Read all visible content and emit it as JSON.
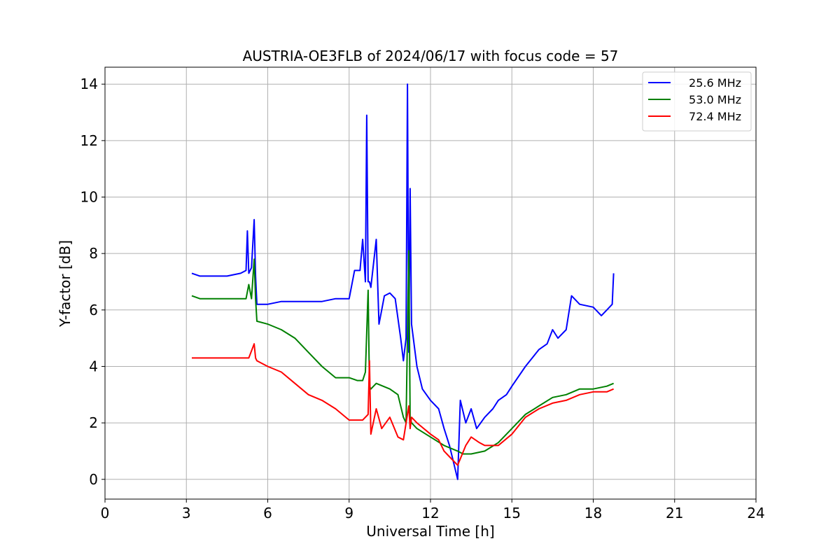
{
  "chart_data": {
    "type": "line",
    "title": "AUSTRIA-OE3FLB of 2024/06/17 with focus code = 57",
    "xlabel": "Universal Time [h]",
    "ylabel": "Y-factor [dB]",
    "xlim": [
      0,
      24
    ],
    "ylim": [
      -0.7,
      14.6
    ],
    "xticks": [
      0,
      3,
      6,
      9,
      12,
      15,
      18,
      21,
      24
    ],
    "yticks": [
      0,
      2,
      4,
      6,
      8,
      10,
      12,
      14
    ],
    "grid": true,
    "legend_position": "top-right",
    "series": [
      {
        "name": "25.6 MHz",
        "color": "#0000ff",
        "x": [
          3.2,
          3.5,
          4.0,
          4.5,
          5.0,
          5.2,
          5.25,
          5.3,
          5.4,
          5.5,
          5.55,
          5.6,
          6.0,
          6.5,
          7.0,
          7.5,
          8.0,
          8.5,
          9.0,
          9.2,
          9.4,
          9.5,
          9.6,
          9.65,
          9.7,
          9.75,
          9.8,
          10.0,
          10.1,
          10.2,
          10.3,
          10.5,
          10.7,
          10.9,
          11.0,
          11.1,
          11.15,
          11.2,
          11.25,
          11.3,
          11.5,
          11.7,
          12.0,
          12.3,
          12.5,
          12.7,
          13.0,
          13.1,
          13.3,
          13.5,
          13.7,
          14.0,
          14.3,
          14.5,
          14.8,
          15.0,
          15.5,
          16.0,
          16.3,
          16.5,
          16.7,
          17.0,
          17.2,
          17.5,
          18.0,
          18.3,
          18.5,
          18.7,
          18.75
        ],
        "y": [
          7.3,
          7.2,
          7.2,
          7.2,
          7.3,
          7.4,
          8.8,
          7.3,
          7.5,
          9.2,
          7.2,
          6.2,
          6.2,
          6.3,
          6.3,
          6.3,
          6.3,
          6.4,
          6.4,
          7.4,
          7.4,
          8.5,
          7.0,
          12.9,
          7.0,
          7.0,
          6.8,
          8.5,
          5.5,
          6.0,
          6.5,
          6.6,
          6.4,
          5.0,
          4.2,
          5.0,
          14.0,
          4.5,
          10.3,
          5.5,
          4.0,
          3.2,
          2.8,
          2.5,
          1.8,
          1.2,
          0.0,
          2.8,
          2.0,
          2.5,
          1.8,
          2.2,
          2.5,
          2.8,
          3.0,
          3.3,
          4.0,
          4.6,
          4.8,
          5.3,
          5.0,
          5.3,
          6.5,
          6.2,
          6.1,
          5.8,
          6.0,
          6.2,
          7.3
        ]
      },
      {
        "name": "53.0 MHz",
        "color": "#008000",
        "x": [
          3.2,
          3.5,
          4.0,
          4.5,
          5.0,
          5.2,
          5.3,
          5.4,
          5.5,
          5.55,
          5.6,
          6.0,
          6.5,
          7.0,
          7.5,
          8.0,
          8.5,
          9.0,
          9.3,
          9.5,
          9.6,
          9.7,
          9.75,
          9.8,
          10.0,
          10.5,
          10.8,
          11.0,
          11.1,
          11.2,
          11.25,
          11.3,
          11.5,
          12.0,
          12.5,
          13.0,
          13.2,
          13.5,
          14.0,
          14.5,
          15.0,
          15.5,
          16.0,
          16.5,
          17.0,
          17.5,
          18.0,
          18.5,
          18.75
        ],
        "y": [
          6.5,
          6.4,
          6.4,
          6.4,
          6.4,
          6.4,
          6.9,
          6.4,
          7.8,
          6.4,
          5.6,
          5.5,
          5.3,
          5.0,
          4.5,
          4.0,
          3.6,
          3.6,
          3.5,
          3.5,
          3.8,
          6.7,
          3.3,
          3.2,
          3.4,
          3.2,
          3.0,
          2.2,
          2.0,
          8.1,
          2.2,
          2.0,
          1.8,
          1.5,
          1.2,
          1.0,
          0.9,
          0.9,
          1.0,
          1.3,
          1.8,
          2.3,
          2.6,
          2.9,
          3.0,
          3.2,
          3.2,
          3.3,
          3.4
        ]
      },
      {
        "name": "72.4 MHz",
        "color": "#ff0000",
        "x": [
          3.2,
          3.5,
          4.0,
          4.5,
          5.0,
          5.3,
          5.5,
          5.55,
          5.6,
          6.0,
          6.5,
          7.0,
          7.5,
          8.0,
          8.5,
          9.0,
          9.5,
          9.7,
          9.75,
          9.8,
          10.0,
          10.2,
          10.5,
          10.8,
          11.0,
          11.2,
          11.25,
          11.3,
          11.5,
          12.0,
          12.3,
          12.5,
          12.7,
          13.0,
          13.3,
          13.5,
          13.8,
          14.0,
          14.5,
          15.0,
          15.5,
          16.0,
          16.5,
          17.0,
          17.5,
          18.0,
          18.5,
          18.75
        ],
        "y": [
          4.3,
          4.3,
          4.3,
          4.3,
          4.3,
          4.3,
          4.8,
          4.3,
          4.2,
          4.0,
          3.8,
          3.4,
          3.0,
          2.8,
          2.5,
          2.1,
          2.1,
          2.3,
          4.2,
          1.6,
          2.5,
          1.8,
          2.2,
          1.5,
          1.4,
          2.6,
          1.8,
          2.2,
          2.0,
          1.6,
          1.4,
          1.0,
          0.8,
          0.5,
          1.2,
          1.5,
          1.3,
          1.2,
          1.2,
          1.6,
          2.2,
          2.5,
          2.7,
          2.8,
          3.0,
          3.1,
          3.1,
          3.2
        ]
      }
    ]
  }
}
